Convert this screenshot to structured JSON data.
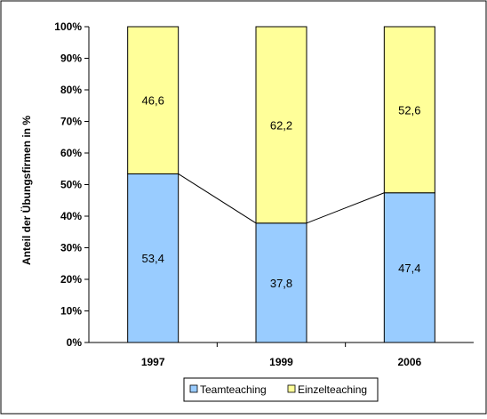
{
  "chart_data": {
    "type": "bar",
    "stacked": true,
    "percent_stacked": true,
    "categories": [
      "1997",
      "1999",
      "2006"
    ],
    "series": [
      {
        "name": "Teamteaching",
        "values": [
          53.4,
          37.8,
          47.4
        ],
        "value_labels": [
          "53,4",
          "37,8",
          "47,4"
        ],
        "color": "#99ccff"
      },
      {
        "name": "Einzelteaching",
        "values": [
          46.6,
          62.2,
          52.6
        ],
        "value_labels": [
          "46,6",
          "62,2",
          "52,6"
        ],
        "color": "#ffff99"
      }
    ],
    "ylabel": "Anteil der Übungsfirmen in %",
    "xlabel": "",
    "ylim": [
      0,
      100
    ],
    "yticks": [
      0,
      10,
      20,
      30,
      40,
      50,
      60,
      70,
      80,
      90,
      100
    ],
    "ytick_labels": [
      "0%",
      "10%",
      "20%",
      "30%",
      "40%",
      "50%",
      "60%",
      "70%",
      "80%",
      "90%",
      "100%"
    ],
    "series_lines": true,
    "grid": false,
    "legend_position": "bottom-right"
  },
  "colors": {
    "border": "#000000",
    "bar_stroke": "#000000"
  }
}
